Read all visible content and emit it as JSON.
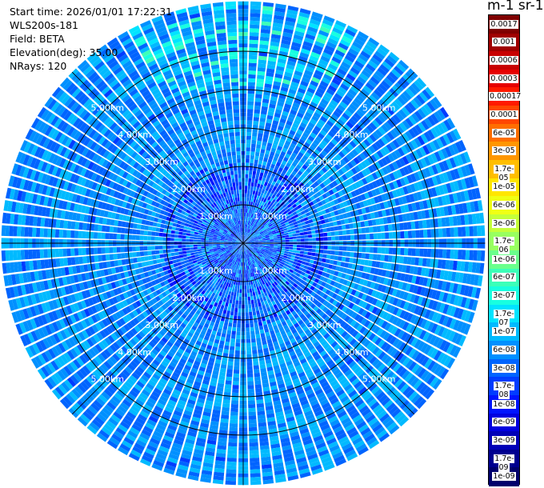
{
  "header": {
    "start_time": "Start time: 2026/01/01 17:22:31",
    "instrument": "WLS200s-181",
    "field": "Field: BETA",
    "elevation": "Elevation(deg): 35.00",
    "nrays": "NRays: 120"
  },
  "colorbar": {
    "unit_label": "m-1 sr-1",
    "ticks": [
      "0.0017",
      "0.001",
      "0.0006",
      "0.0003",
      "0.00017",
      "0.0001",
      "6e-05",
      "3e-05",
      "1.7e-05",
      "1e-05",
      "6e-06",
      "3e-06",
      "1.7e-06",
      "1e-06",
      "6e-07",
      "3e-07",
      "1.7e-07",
      "1e-07",
      "6e-08",
      "3e-08",
      "1.7e-08",
      "1e-08",
      "6e-09",
      "3e-09",
      "1.7e-09",
      "1e-09"
    ],
    "colors": [
      "#7f0000",
      "#a00000",
      "#c80000",
      "#e60000",
      "#ff1a00",
      "#ff4600",
      "#ff6e00",
      "#ff9600",
      "#ffbe00",
      "#ffe600",
      "#f0ff14",
      "#c4ff3a",
      "#98ff60",
      "#6aff8c",
      "#3cffb8",
      "#18ffe0",
      "#00e4ff",
      "#00baff",
      "#0090ff",
      "#0064ff",
      "#003cff",
      "#0014ff",
      "#0000e0",
      "#0000b8",
      "#000090",
      "#00006c"
    ]
  },
  "chart_data": {
    "type": "heatmap",
    "projection": "polar (PPI scan)",
    "variable": "BETA",
    "nrays": 120,
    "elevation_deg": 35.0,
    "range_ring_labels": [
      "1.00km",
      "2.00km",
      "3.00km",
      "4.00km",
      "5.00km"
    ],
    "range_rings_km": [
      1,
      2,
      3,
      4,
      5
    ],
    "max_range_km": 6.3,
    "gate_km": 0.1,
    "color_scale": "log",
    "clim": [
      1e-09,
      0.0017
    ],
    "typical_value": 6e-08,
    "grid": true
  }
}
